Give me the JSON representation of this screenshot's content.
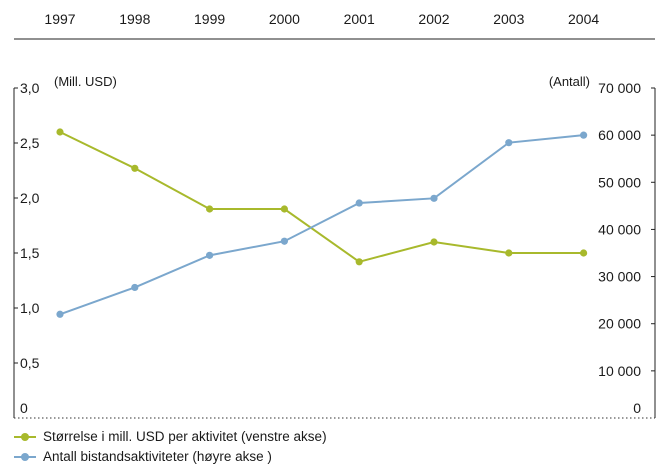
{
  "chart_data": {
    "type": "line",
    "x": [
      "1997",
      "1998",
      "1999",
      "2000",
      "2001",
      "2002",
      "2003",
      "2004"
    ],
    "left_axis": {
      "unit_label": "(Mill. USD)",
      "range": [
        0,
        3.0
      ],
      "ticks": [
        "0",
        "0,5",
        "1,0",
        "1,5",
        "2,0",
        "2,5",
        "3,0"
      ],
      "tick_values": [
        0,
        0.5,
        1.0,
        1.5,
        2.0,
        2.5,
        3.0
      ]
    },
    "right_axis": {
      "unit_label": "(Antall)",
      "range": [
        0,
        70000
      ],
      "ticks": [
        "0",
        "10 000",
        "20 000",
        "30 000",
        "40 000",
        "50 000",
        "60 000",
        "70 000"
      ],
      "tick_values": [
        0,
        10000,
        20000,
        30000,
        40000,
        50000,
        60000,
        70000
      ]
    },
    "series": [
      {
        "name": "Størrelse i mill. USD per aktivitet (venstre akse)",
        "axis": "left",
        "color": "#a8b92c",
        "values": [
          2.6,
          2.27,
          1.9,
          1.9,
          1.42,
          1.6,
          1.5,
          1.5
        ]
      },
      {
        "name": "Antall bistandsaktiviteter (høyre akse )",
        "axis": "right",
        "color": "#7ba7cd",
        "values": [
          22000,
          27700,
          34500,
          37500,
          45600,
          46600,
          58400,
          60000
        ]
      }
    ],
    "grid": false,
    "legend_position": "bottom-left"
  }
}
